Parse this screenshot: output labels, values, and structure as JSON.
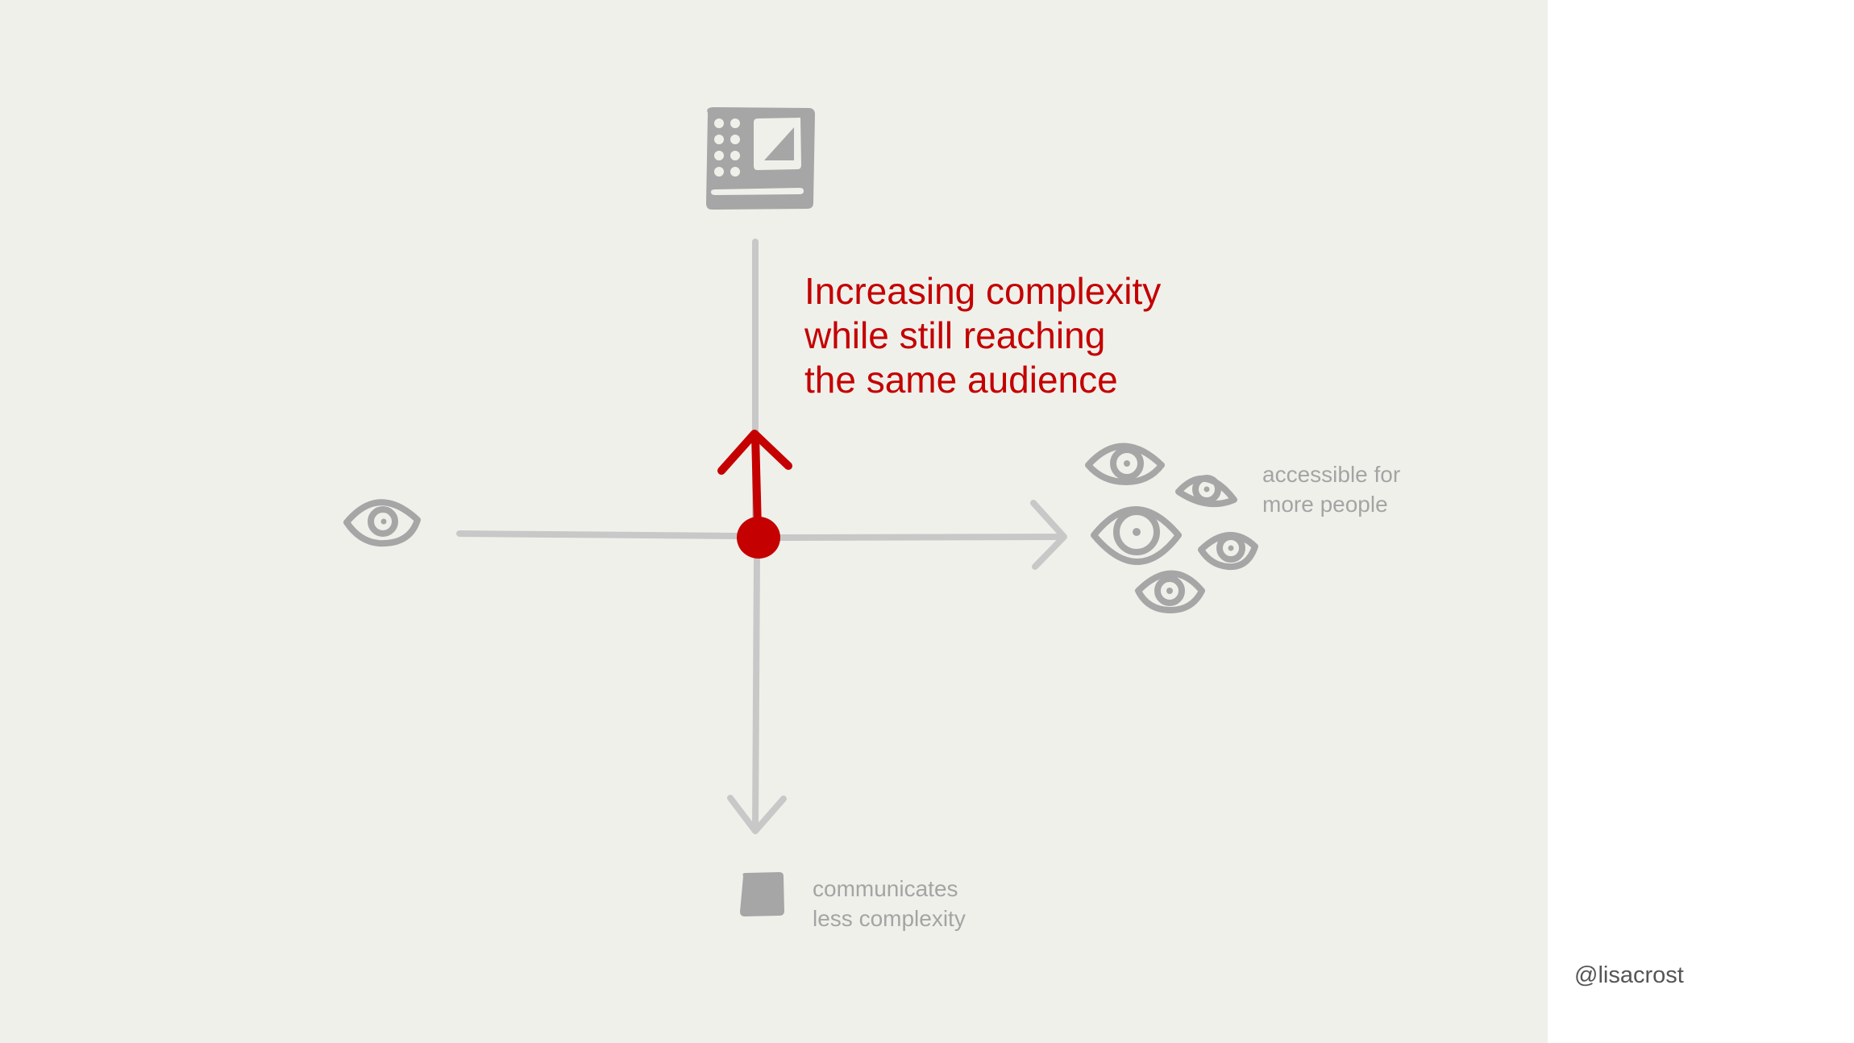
{
  "headline": {
    "line1": "Increasing complexity",
    "line2": "while still reaching",
    "line3": "the same audience"
  },
  "x_axis_label": {
    "line1": "accessible for",
    "line2": "more people"
  },
  "y_axis_label": {
    "line1": "communicates",
    "line2": "less complexity"
  },
  "author_handle": "@lisacrost",
  "colors": {
    "background": "#f0f0eb",
    "axis": "#c8c8c8",
    "icon": "#a6a6a6",
    "accent": "#c40000",
    "label": "#a4a4a4",
    "handle": "#555555"
  },
  "icons": {
    "top": "complex-chart-icon",
    "left": "single-eye-icon",
    "right": "many-eyes-icon",
    "bottom": "simple-square-icon"
  }
}
